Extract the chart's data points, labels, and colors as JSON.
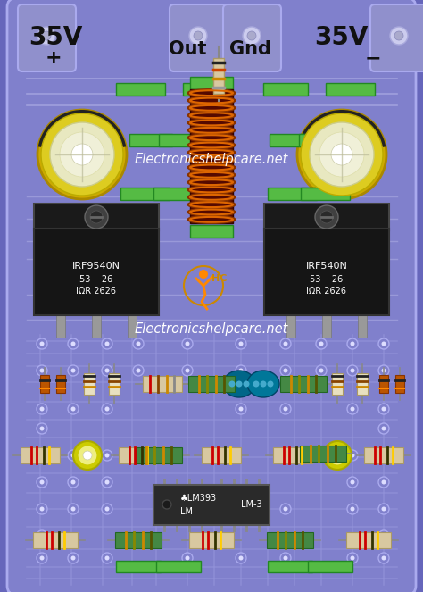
{
  "bg_color": "#6666bb",
  "pcb_color": "#8080cc",
  "pcb_edge": "#aaaaee",
  "green": "#55bb44",
  "green_dark": "#228822",
  "black": "#111111",
  "white": "#ffffff",
  "label_35v_left": "35V",
  "label_35v_right": "35V",
  "label_out": "Out",
  "label_gnd": "Gnd",
  "label_plus": "+",
  "label_minus": "−",
  "label_irf9540n": "IRF9540N",
  "label_irf540n": "IRF540N",
  "watermark1": "Electronicshelpcare.net",
  "watermark2": "Electronicshelpcare.net",
  "lm393_label": "♣LM393",
  "lm3_label": "LM-3",
  "figsize": [
    4.74,
    6.63
  ],
  "dpi": 100
}
